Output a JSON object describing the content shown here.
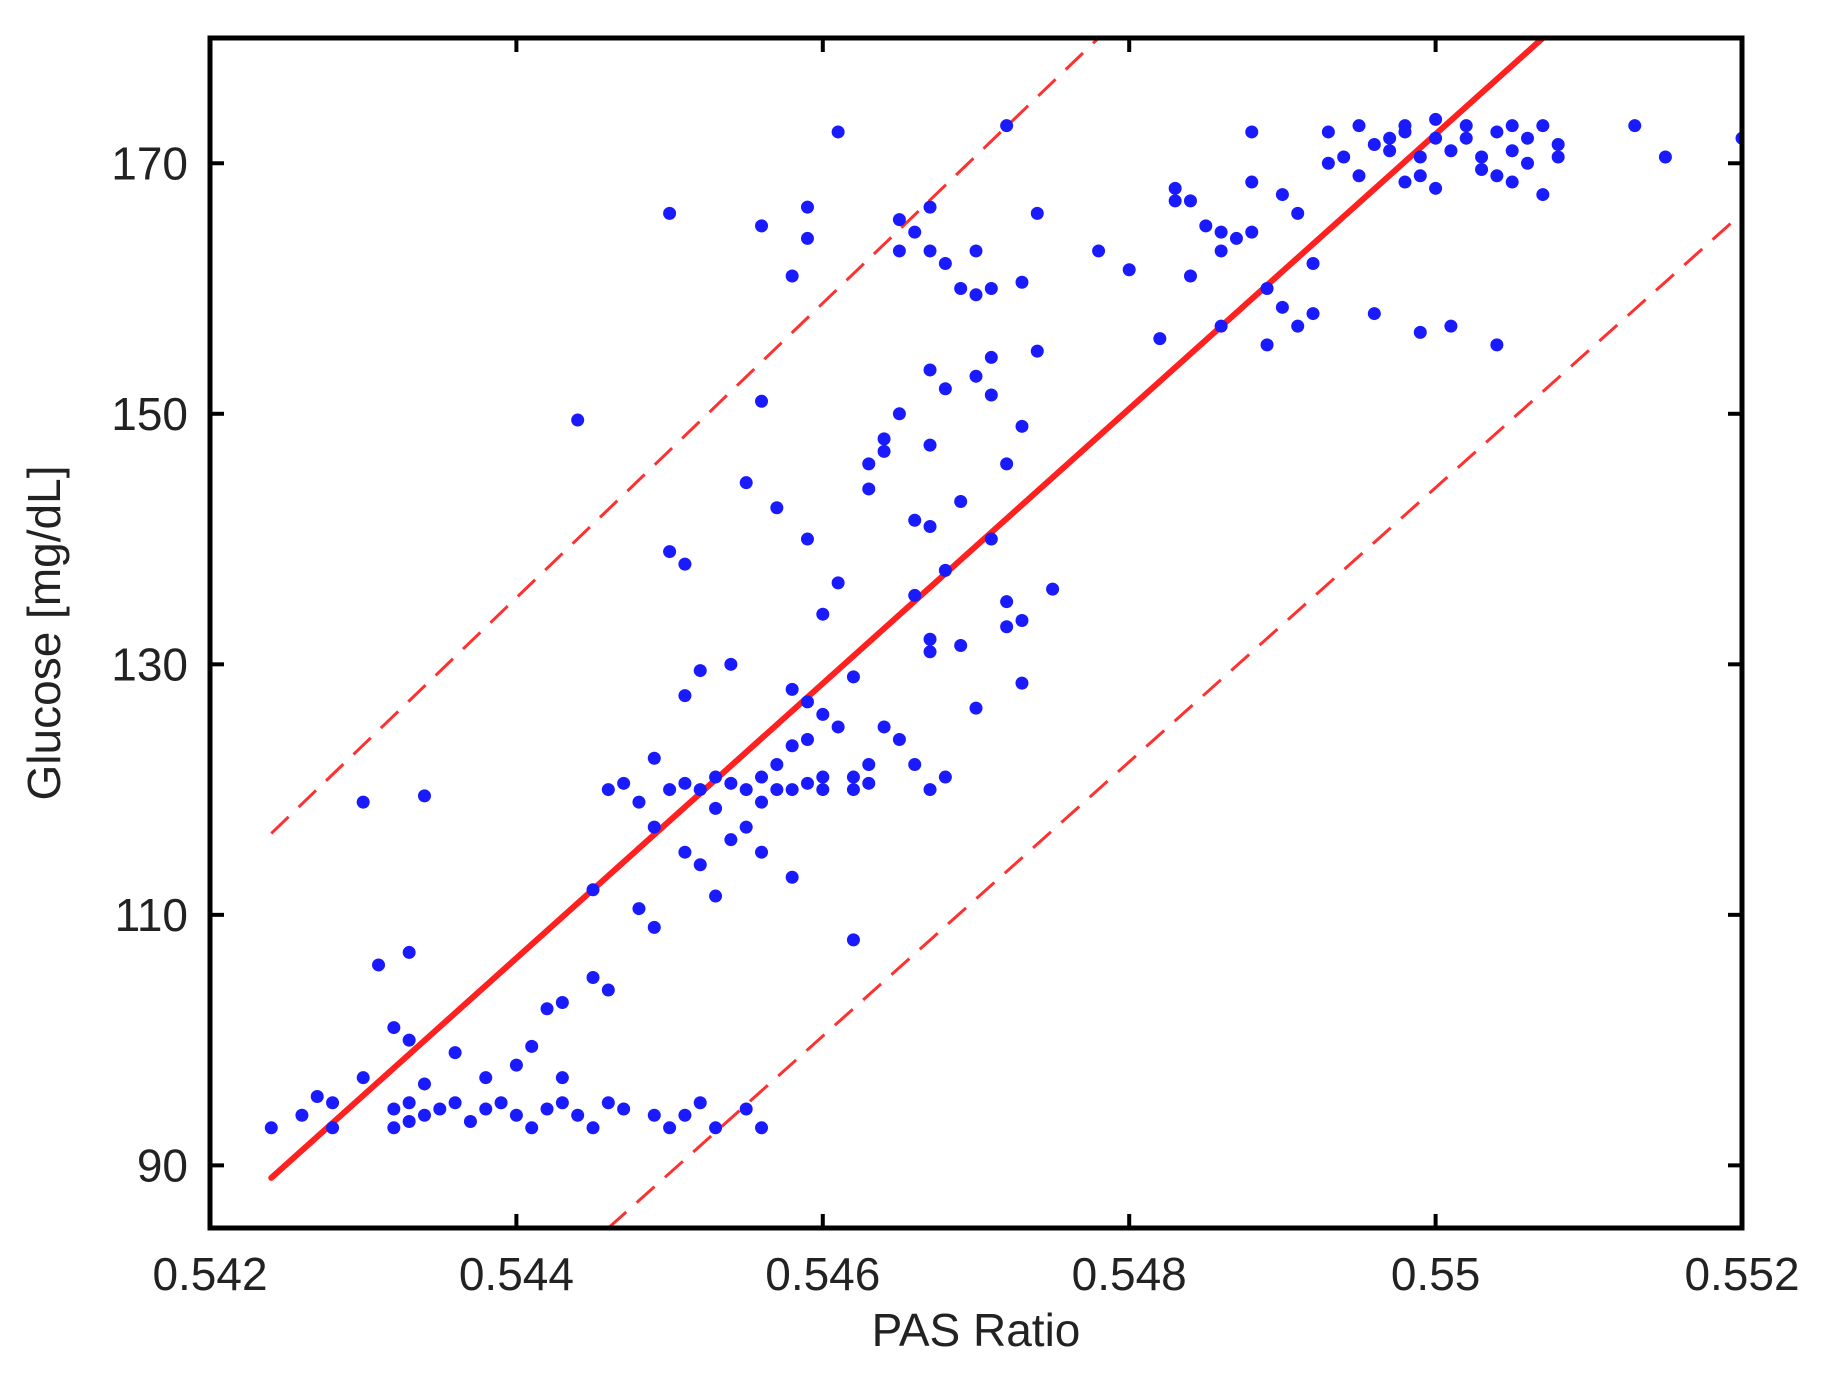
{
  "chart_data": {
    "type": "scatter",
    "title": "",
    "xlabel": "PAS Ratio",
    "ylabel": "Glucose [mg/dL]",
    "xlim": [
      0.542,
      0.552
    ],
    "ylim": [
      85,
      180
    ],
    "xticks": [
      0.542,
      0.544,
      0.546,
      0.548,
      0.55,
      0.552
    ],
    "xtick_labels": [
      "0.542",
      "0.544",
      "0.546",
      "0.548",
      "0.55",
      "0.552"
    ],
    "yticks": [
      90,
      110,
      130,
      150,
      170
    ],
    "ytick_labels": [
      "90",
      "110",
      "130",
      "150",
      "170"
    ],
    "grid": false,
    "legend": "none",
    "colors": {
      "points": "#1a1aff",
      "fit": "#ff2020",
      "bounds": "#ff3030",
      "axes": "#000000"
    },
    "fit_line": {
      "x": [
        0.5424,
        0.5507
      ],
      "y": [
        89,
        180
      ]
    },
    "upper_bound": {
      "x": [
        0.5424,
        0.5478
      ],
      "y": [
        116.5,
        180
      ]
    },
    "lower_bound": {
      "x": [
        0.5446,
        0.552
      ],
      "y": [
        85,
        166
      ]
    },
    "points": [
      [
        0.5424,
        93
      ],
      [
        0.5426,
        94
      ],
      [
        0.5427,
        95.5
      ],
      [
        0.5428,
        93
      ],
      [
        0.5428,
        95
      ],
      [
        0.543,
        97
      ],
      [
        0.5432,
        94.5
      ],
      [
        0.5432,
        93
      ],
      [
        0.5433,
        93.5
      ],
      [
        0.5433,
        95
      ],
      [
        0.5434,
        94
      ],
      [
        0.5435,
        94.5
      ],
      [
        0.5436,
        95
      ],
      [
        0.5437,
        93.5
      ],
      [
        0.5438,
        94.5
      ],
      [
        0.5439,
        95
      ],
      [
        0.544,
        94
      ],
      [
        0.5441,
        93
      ],
      [
        0.5442,
        94.5
      ],
      [
        0.5443,
        95
      ],
      [
        0.5444,
        94
      ],
      [
        0.5445,
        93
      ],
      [
        0.5446,
        95
      ],
      [
        0.5447,
        94.5
      ],
      [
        0.5449,
        94
      ],
      [
        0.545,
        93
      ],
      [
        0.5451,
        94
      ],
      [
        0.5452,
        95
      ],
      [
        0.5453,
        93
      ],
      [
        0.5455,
        94.5
      ],
      [
        0.5456,
        93
      ],
      [
        0.5434,
        96.5
      ],
      [
        0.5436,
        99
      ],
      [
        0.5438,
        97
      ],
      [
        0.544,
        98
      ],
      [
        0.5441,
        99.5
      ],
      [
        0.5443,
        97
      ],
      [
        0.5432,
        101
      ],
      [
        0.5433,
        100
      ],
      [
        0.5431,
        106
      ],
      [
        0.5433,
        107
      ],
      [
        0.5442,
        102.5
      ],
      [
        0.5443,
        103
      ],
      [
        0.5445,
        105
      ],
      [
        0.5446,
        104
      ],
      [
        0.543,
        119
      ],
      [
        0.5434,
        119.5
      ],
      [
        0.5445,
        112
      ],
      [
        0.5446,
        120
      ],
      [
        0.5447,
        120.5
      ],
      [
        0.5448,
        119
      ],
      [
        0.5449,
        117
      ],
      [
        0.5449,
        122.5
      ],
      [
        0.545,
        120
      ],
      [
        0.5451,
        120.5
      ],
      [
        0.5451,
        115
      ],
      [
        0.5452,
        114
      ],
      [
        0.5452,
        120
      ],
      [
        0.5453,
        118.5
      ],
      [
        0.5453,
        121
      ],
      [
        0.5454,
        120.5
      ],
      [
        0.5454,
        116
      ],
      [
        0.5455,
        117
      ],
      [
        0.5455,
        120
      ],
      [
        0.5456,
        121
      ],
      [
        0.5456,
        119
      ],
      [
        0.5457,
        120
      ],
      [
        0.5457,
        122
      ],
      [
        0.5458,
        120
      ],
      [
        0.5458,
        123.5
      ],
      [
        0.5459,
        120.5
      ],
      [
        0.5459,
        124
      ],
      [
        0.546,
        120
      ],
      [
        0.546,
        121
      ],
      [
        0.5461,
        125
      ],
      [
        0.5462,
        120
      ],
      [
        0.5462,
        121
      ],
      [
        0.5463,
        122
      ],
      [
        0.5463,
        120.5
      ],
      [
        0.5448,
        110.5
      ],
      [
        0.5449,
        109
      ],
      [
        0.5453,
        111.5
      ],
      [
        0.5456,
        115
      ],
      [
        0.5458,
        113
      ],
      [
        0.5462,
        108
      ],
      [
        0.5451,
        127.5
      ],
      [
        0.5452,
        129.5
      ],
      [
        0.5454,
        130
      ],
      [
        0.5458,
        128
      ],
      [
        0.5459,
        127
      ],
      [
        0.546,
        126
      ],
      [
        0.5464,
        125
      ],
      [
        0.5465,
        124
      ],
      [
        0.5466,
        122
      ],
      [
        0.5467,
        120
      ],
      [
        0.5468,
        121
      ],
      [
        0.545,
        139
      ],
      [
        0.5451,
        138
      ],
      [
        0.5455,
        144.5
      ],
      [
        0.5457,
        142.5
      ],
      [
        0.5459,
        140
      ],
      [
        0.546,
        134
      ],
      [
        0.5461,
        136.5
      ],
      [
        0.5462,
        129
      ],
      [
        0.5463,
        144
      ],
      [
        0.5463,
        146
      ],
      [
        0.5464,
        147
      ],
      [
        0.5464,
        148
      ],
      [
        0.5465,
        150
      ],
      [
        0.5466,
        141.5
      ],
      [
        0.5467,
        141
      ],
      [
        0.5467,
        147.5
      ],
      [
        0.5467,
        153.5
      ],
      [
        0.5468,
        152
      ],
      [
        0.5466,
        135.5
      ],
      [
        0.5467,
        132
      ],
      [
        0.5467,
        131
      ],
      [
        0.5468,
        137.5
      ],
      [
        0.5469,
        143
      ],
      [
        0.5469,
        131.5
      ],
      [
        0.547,
        153
      ],
      [
        0.547,
        126.5
      ],
      [
        0.5471,
        154.5
      ],
      [
        0.5471,
        151.5
      ],
      [
        0.5471,
        140
      ],
      [
        0.5472,
        135
      ],
      [
        0.5472,
        133
      ],
      [
        0.5472,
        146
      ],
      [
        0.5473,
        149
      ],
      [
        0.5473,
        128.5
      ],
      [
        0.5473,
        133.5
      ],
      [
        0.5474,
        155
      ],
      [
        0.5475,
        136
      ],
      [
        0.5444,
        149.5
      ],
      [
        0.5456,
        151
      ],
      [
        0.5456,
        165
      ],
      [
        0.5458,
        161
      ],
      [
        0.5459,
        166.5
      ],
      [
        0.5459,
        164
      ],
      [
        0.545,
        166
      ],
      [
        0.5461,
        172.5
      ],
      [
        0.5465,
        163
      ],
      [
        0.5465,
        165.5
      ],
      [
        0.5466,
        164.5
      ],
      [
        0.5467,
        166.5
      ],
      [
        0.5467,
        163
      ],
      [
        0.5468,
        162
      ],
      [
        0.5469,
        160
      ],
      [
        0.547,
        163
      ],
      [
        0.547,
        159.5
      ],
      [
        0.5471,
        160
      ],
      [
        0.5472,
        173
      ],
      [
        0.5473,
        160.5
      ],
      [
        0.5474,
        166
      ],
      [
        0.5478,
        163
      ],
      [
        0.548,
        161.5
      ],
      [
        0.5482,
        156
      ],
      [
        0.5483,
        167
      ],
      [
        0.5483,
        168
      ],
      [
        0.5484,
        167
      ],
      [
        0.5484,
        161
      ],
      [
        0.5485,
        165
      ],
      [
        0.5486,
        164.5
      ],
      [
        0.5486,
        163
      ],
      [
        0.5486,
        157
      ],
      [
        0.5487,
        164
      ],
      [
        0.5488,
        164.5
      ],
      [
        0.5488,
        168.5
      ],
      [
        0.5488,
        172.5
      ],
      [
        0.5489,
        160
      ],
      [
        0.5489,
        155.5
      ],
      [
        0.549,
        167.5
      ],
      [
        0.549,
        158.5
      ],
      [
        0.5491,
        157
      ],
      [
        0.5491,
        166
      ],
      [
        0.5492,
        158
      ],
      [
        0.5492,
        162
      ],
      [
        0.5493,
        172.5
      ],
      [
        0.5493,
        170
      ],
      [
        0.5494,
        170.5
      ],
      [
        0.5495,
        169
      ],
      [
        0.5495,
        173
      ],
      [
        0.5496,
        171.5
      ],
      [
        0.5496,
        158
      ],
      [
        0.5497,
        172
      ],
      [
        0.5497,
        171
      ],
      [
        0.5498,
        173
      ],
      [
        0.5498,
        172.5
      ],
      [
        0.5499,
        170.5
      ],
      [
        0.5499,
        169
      ],
      [
        0.55,
        172
      ],
      [
        0.55,
        173.5
      ],
      [
        0.55,
        168
      ],
      [
        0.5501,
        171
      ],
      [
        0.5501,
        157
      ],
      [
        0.5502,
        173
      ],
      [
        0.5502,
        172
      ],
      [
        0.5503,
        169.5
      ],
      [
        0.5503,
        170.5
      ],
      [
        0.5504,
        172.5
      ],
      [
        0.5504,
        169
      ],
      [
        0.5504,
        155.5
      ],
      [
        0.5505,
        171
      ],
      [
        0.5505,
        173
      ],
      [
        0.5505,
        168.5
      ],
      [
        0.5506,
        172
      ],
      [
        0.5506,
        170
      ],
      [
        0.5507,
        173
      ],
      [
        0.5507,
        167.5
      ],
      [
        0.5508,
        171.5
      ],
      [
        0.5508,
        170.5
      ],
      [
        0.5513,
        173
      ],
      [
        0.5515,
        170.5
      ],
      [
        0.552,
        172
      ],
      [
        0.5499,
        156.5
      ],
      [
        0.5498,
        168.5
      ]
    ]
  }
}
